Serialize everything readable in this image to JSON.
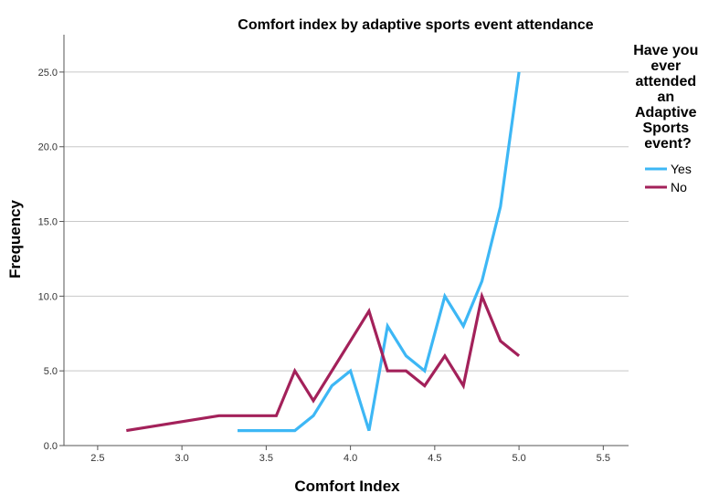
{
  "chart_data": {
    "type": "line",
    "title": "Comfort index by adaptive sports event attendance",
    "xlabel": "Comfort Index",
    "ylabel": "Frequency",
    "xlim": [
      2.3,
      5.65
    ],
    "ylim": [
      0,
      27.5
    ],
    "xticks": [
      "2.5",
      "3.0",
      "3.5",
      "4.0",
      "4.5",
      "5.0",
      "5.5"
    ],
    "yticks": [
      "0.0",
      "5.0",
      "10.0",
      "15.0",
      "20.0",
      "25.0"
    ],
    "grid": "horizontal",
    "legend": {
      "title_lines": [
        "Have you",
        "ever",
        "attended",
        "an",
        "Adaptive",
        "Sports",
        "event?"
      ],
      "position": "right"
    },
    "series": [
      {
        "name": "Yes",
        "color": "#3db7f5",
        "x": [
          3.33,
          3.44,
          3.56,
          3.67,
          3.78,
          3.89,
          4.0,
          4.11,
          4.22,
          4.33,
          4.44,
          4.56,
          4.67,
          4.78,
          4.89,
          5.0
        ],
        "y": [
          1,
          1,
          1,
          1,
          2,
          4,
          5,
          1,
          8,
          6,
          5,
          10,
          8,
          11,
          16,
          25
        ]
      },
      {
        "name": "No",
        "color": "#a3215a",
        "x": [
          2.67,
          3.22,
          3.33,
          3.44,
          3.56,
          3.67,
          3.78,
          4.11,
          4.22,
          4.33,
          4.44,
          4.56,
          4.67,
          4.78,
          4.89,
          5.0
        ],
        "y": [
          1,
          2,
          2,
          2,
          2,
          5,
          3,
          9,
          5,
          5,
          4,
          6,
          4,
          10,
          7,
          6
        ]
      }
    ]
  }
}
